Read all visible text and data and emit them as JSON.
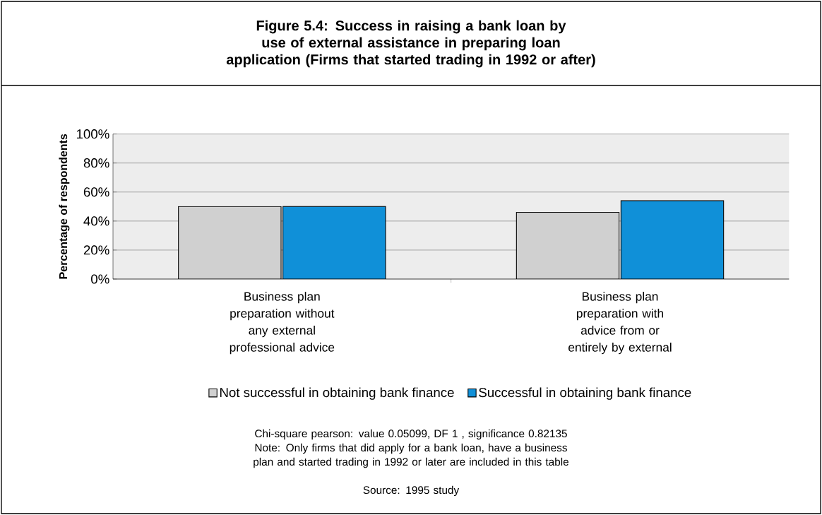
{
  "chart_data": {
    "type": "bar",
    "title": "Figure 5.4: Success in raising a bank loan by use of external assistance in preparing loan application (Firms that started trading in 1992 or after)",
    "ylabel": "Percentage of respondents",
    "categories": [
      "Business plan preparation without any external professional advice",
      "Business plan preparation with advice from or entirely by external"
    ],
    "series": [
      {
        "name": "Not successful in obtaining bank finance",
        "color": "#d0d0d0",
        "values": [
          50,
          46
        ]
      },
      {
        "name": "Successful in obtaining bank finance",
        "color": "#1090d8",
        "values": [
          50,
          54
        ]
      }
    ],
    "ylim": [
      0,
      100
    ],
    "yticks": [
      {
        "value": 0,
        "label": "0%"
      },
      {
        "value": 20,
        "label": "20%"
      },
      {
        "value": 40,
        "label": "40%"
      },
      {
        "value": 60,
        "label": "60%"
      },
      {
        "value": 80,
        "label": "80%"
      },
      {
        "value": 100,
        "label": "100%"
      }
    ],
    "grid": "y",
    "legend": "bottom",
    "annotations": [
      "Chi-square pearson: value 0.05099, DF 1 , significance 0.82135",
      "Note: Only firms that did apply for a bank loan, have a business plan and started trading in 1992 or later are included in this table",
      "Source: 1995 study"
    ]
  }
}
